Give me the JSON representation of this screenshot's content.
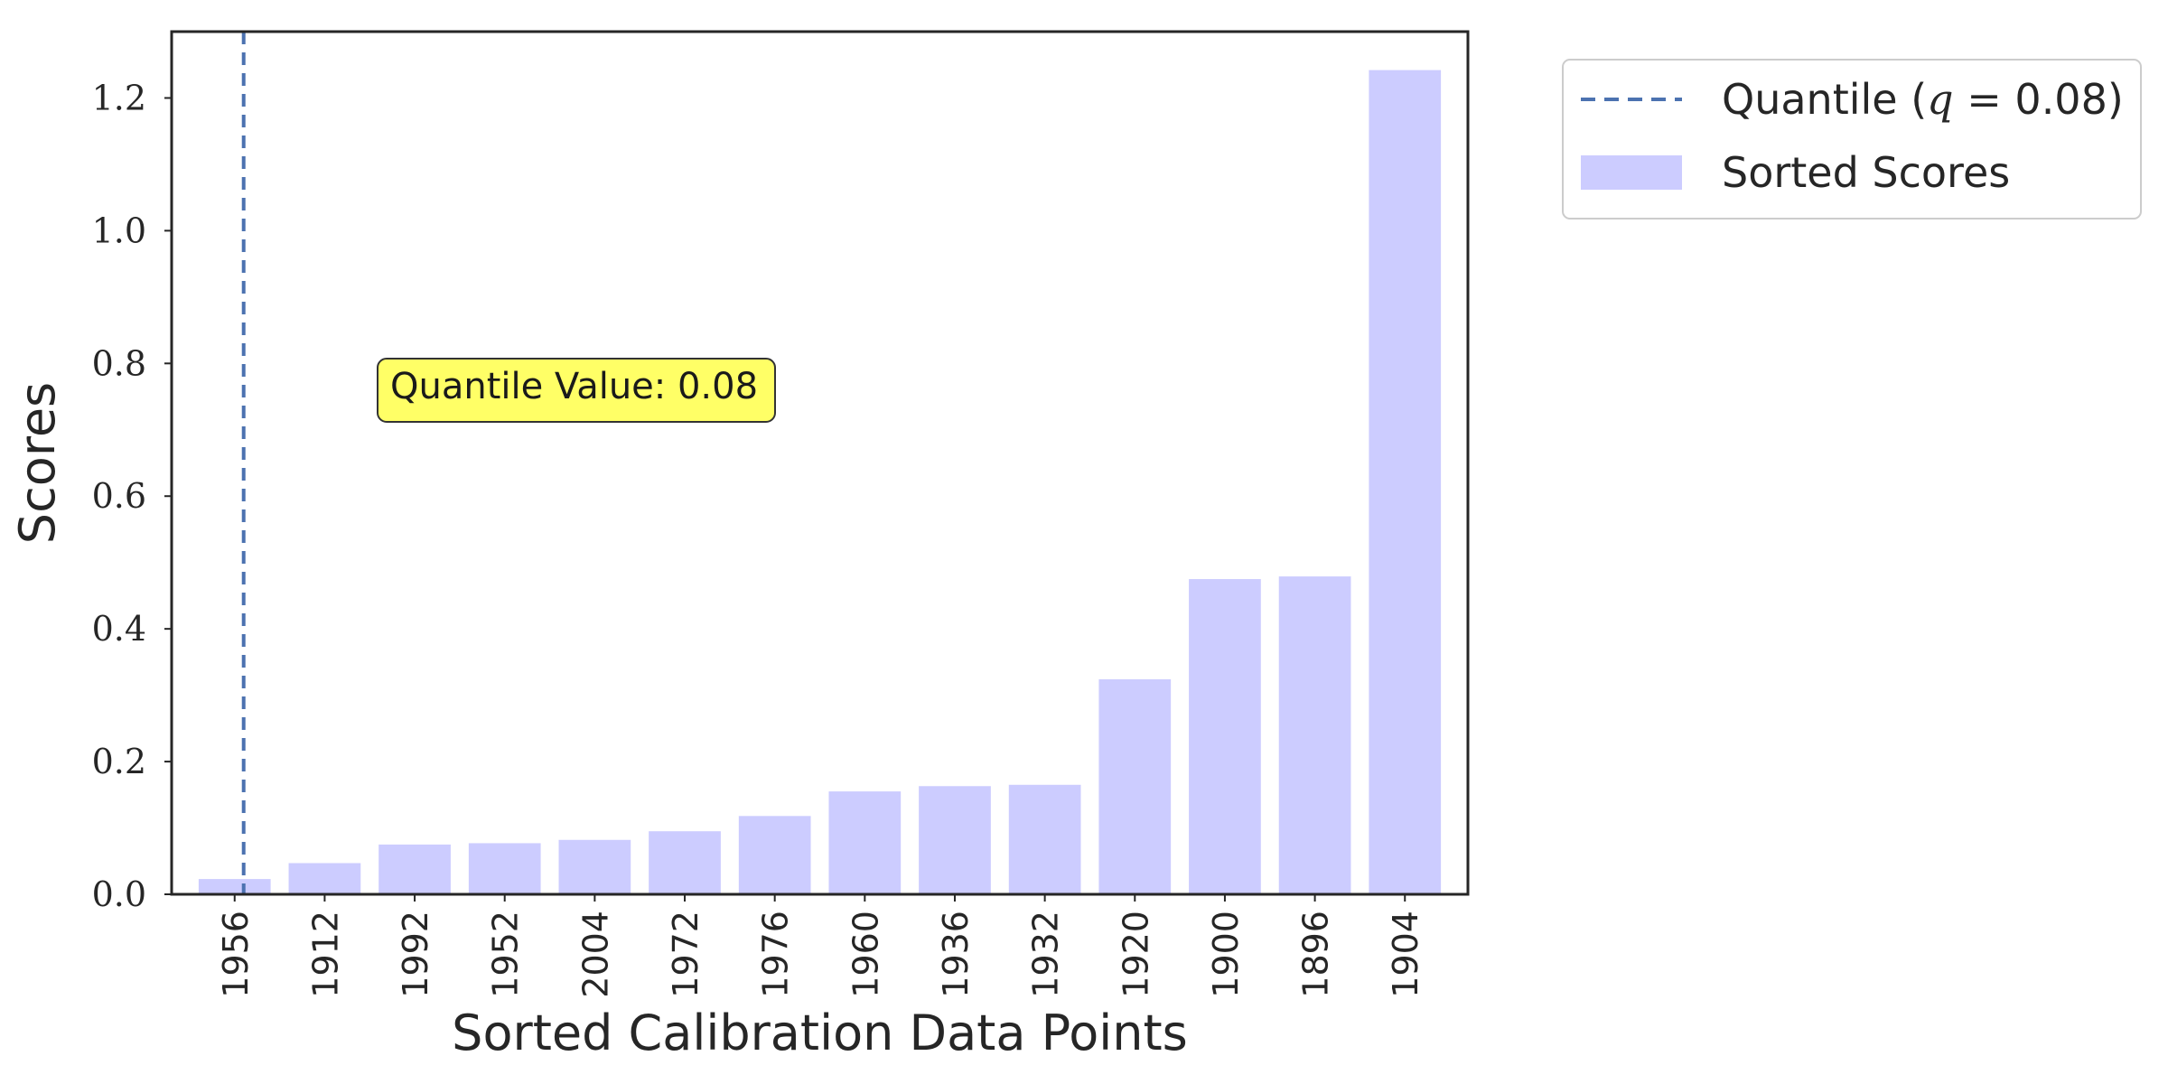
{
  "chart_data": {
    "type": "bar",
    "title": "",
    "xlabel": "Sorted Calibration Data Points",
    "ylabel": "Scores",
    "categories": [
      "1956",
      "1912",
      "1992",
      "1952",
      "2004",
      "1972",
      "1976",
      "1960",
      "1936",
      "1932",
      "1920",
      "1900",
      "1896",
      "1904"
    ],
    "series": [
      {
        "name": "Sorted Scores",
        "values": [
          0.023,
          0.047,
          0.075,
          0.077,
          0.082,
          0.095,
          0.118,
          0.155,
          0.163,
          0.165,
          0.324,
          0.475,
          0.479,
          1.242
        ]
      }
    ],
    "yticks": [
      "0.0",
      "0.2",
      "0.4",
      "0.6",
      "0.8",
      "1.0",
      "1.2"
    ],
    "ylim": [
      0,
      1.3
    ],
    "grid": false,
    "legend_position": "outside-top-right",
    "quantile_line": {
      "label_prefix": "Quantile (",
      "label_var": "q",
      "label_eq": " = ",
      "label_value": "0.08",
      "label_suffix": ")",
      "category_position": 0.1
    },
    "annotation": {
      "text": "Quantile Value: 0.08"
    },
    "colors": {
      "bar": "#ccccff",
      "quantile_line": "#4c72b0",
      "annotation_bg": "#ffff66",
      "axes": "#262626"
    }
  }
}
